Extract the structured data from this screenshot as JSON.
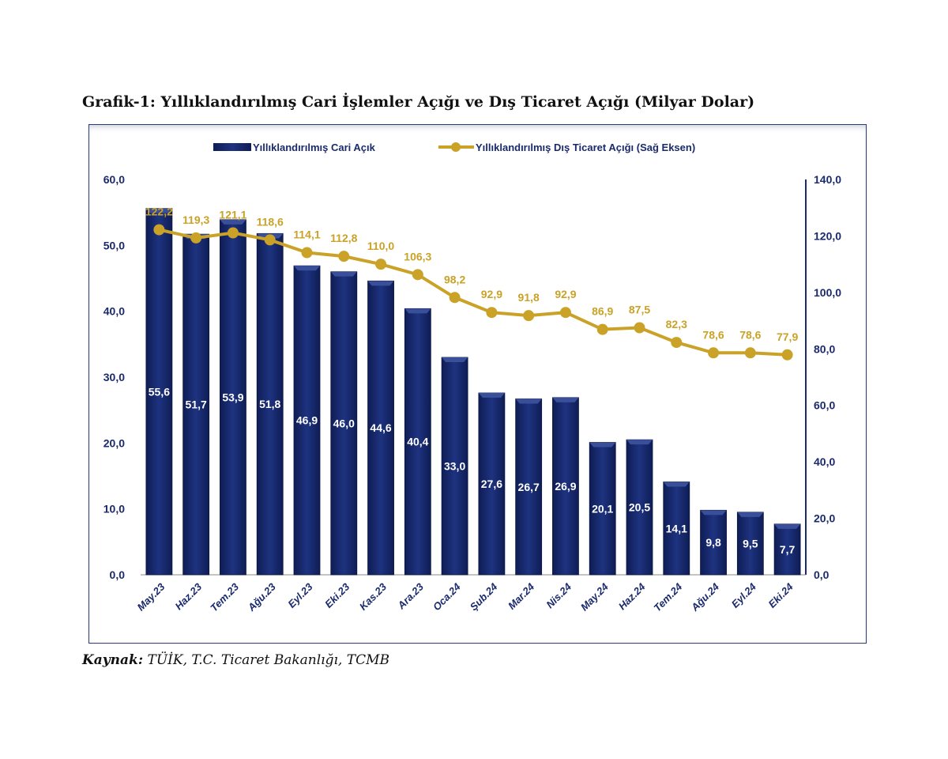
{
  "title": "Grafik-1: Yıllıklandırılmış Cari İşlemler Açığı ve Dış Ticaret Açığı (Milyar Dolar)",
  "source": {
    "label": "Kaynak:",
    "text": " TÜİK, T.C. Ticaret Bakanlığı, TCMB"
  },
  "chart_data": {
    "type": "bar+line",
    "categories": [
      "May.23",
      "Haz.23",
      "Tem.23",
      "Ağu.23",
      "Eyl.23",
      "Eki.23",
      "Kas.23",
      "Ara.23",
      "Oca.24",
      "Şub.24",
      "Mar.24",
      "Nis.24",
      "May.24",
      "Haz.24",
      "Tem.24",
      "Ağu.24",
      "Eyl.24",
      "Eki.24"
    ],
    "series": [
      {
        "name": "Yıllıklandırılmış Cari Açık",
        "type": "bar",
        "axis": "left",
        "color": "#1a2a6c",
        "values": [
          55.6,
          51.7,
          53.9,
          51.8,
          46.9,
          46.0,
          44.6,
          40.4,
          33.0,
          27.6,
          26.7,
          26.9,
          20.1,
          20.5,
          14.1,
          9.8,
          9.5,
          7.7
        ],
        "labels": [
          "55,6",
          "51,7",
          "53,9",
          "51,8",
          "46,9",
          "46,0",
          "44,6",
          "40,4",
          "33,0",
          "27,6",
          "26,7",
          "26,9",
          "20,1",
          "20,5",
          "14,1",
          "9,8",
          "9,5",
          "7,7"
        ]
      },
      {
        "name": "Yıllıklandırılmış Dış Ticaret Açığı (Sağ Eksen)",
        "type": "line",
        "axis": "right",
        "color": "#c9a227",
        "values": [
          122.2,
          119.3,
          121.1,
          118.6,
          114.1,
          112.8,
          110.0,
          106.3,
          98.2,
          92.9,
          91.8,
          92.9,
          86.9,
          87.5,
          82.3,
          78.6,
          78.6,
          77.9
        ],
        "labels": [
          "122,2",
          "119,3",
          "121,1",
          "118,6",
          "114,1",
          "112,8",
          "110,0",
          "106,3",
          "98,2",
          "92,9",
          "91,8",
          "92,9",
          "86,9",
          "87,5",
          "82,3",
          "78,6",
          "78,6",
          "77,9"
        ]
      }
    ],
    "left_axis": {
      "ylim": [
        0,
        60
      ],
      "ticks": [
        "0,0",
        "10,0",
        "20,0",
        "30,0",
        "40,0",
        "50,0",
        "60,0"
      ]
    },
    "right_axis": {
      "ylim": [
        0,
        140
      ],
      "ticks": [
        "0,0",
        "20,0",
        "40,0",
        "60,0",
        "80,0",
        "100,0",
        "120,0",
        "140,0"
      ]
    },
    "legend": "top",
    "grid": false
  }
}
